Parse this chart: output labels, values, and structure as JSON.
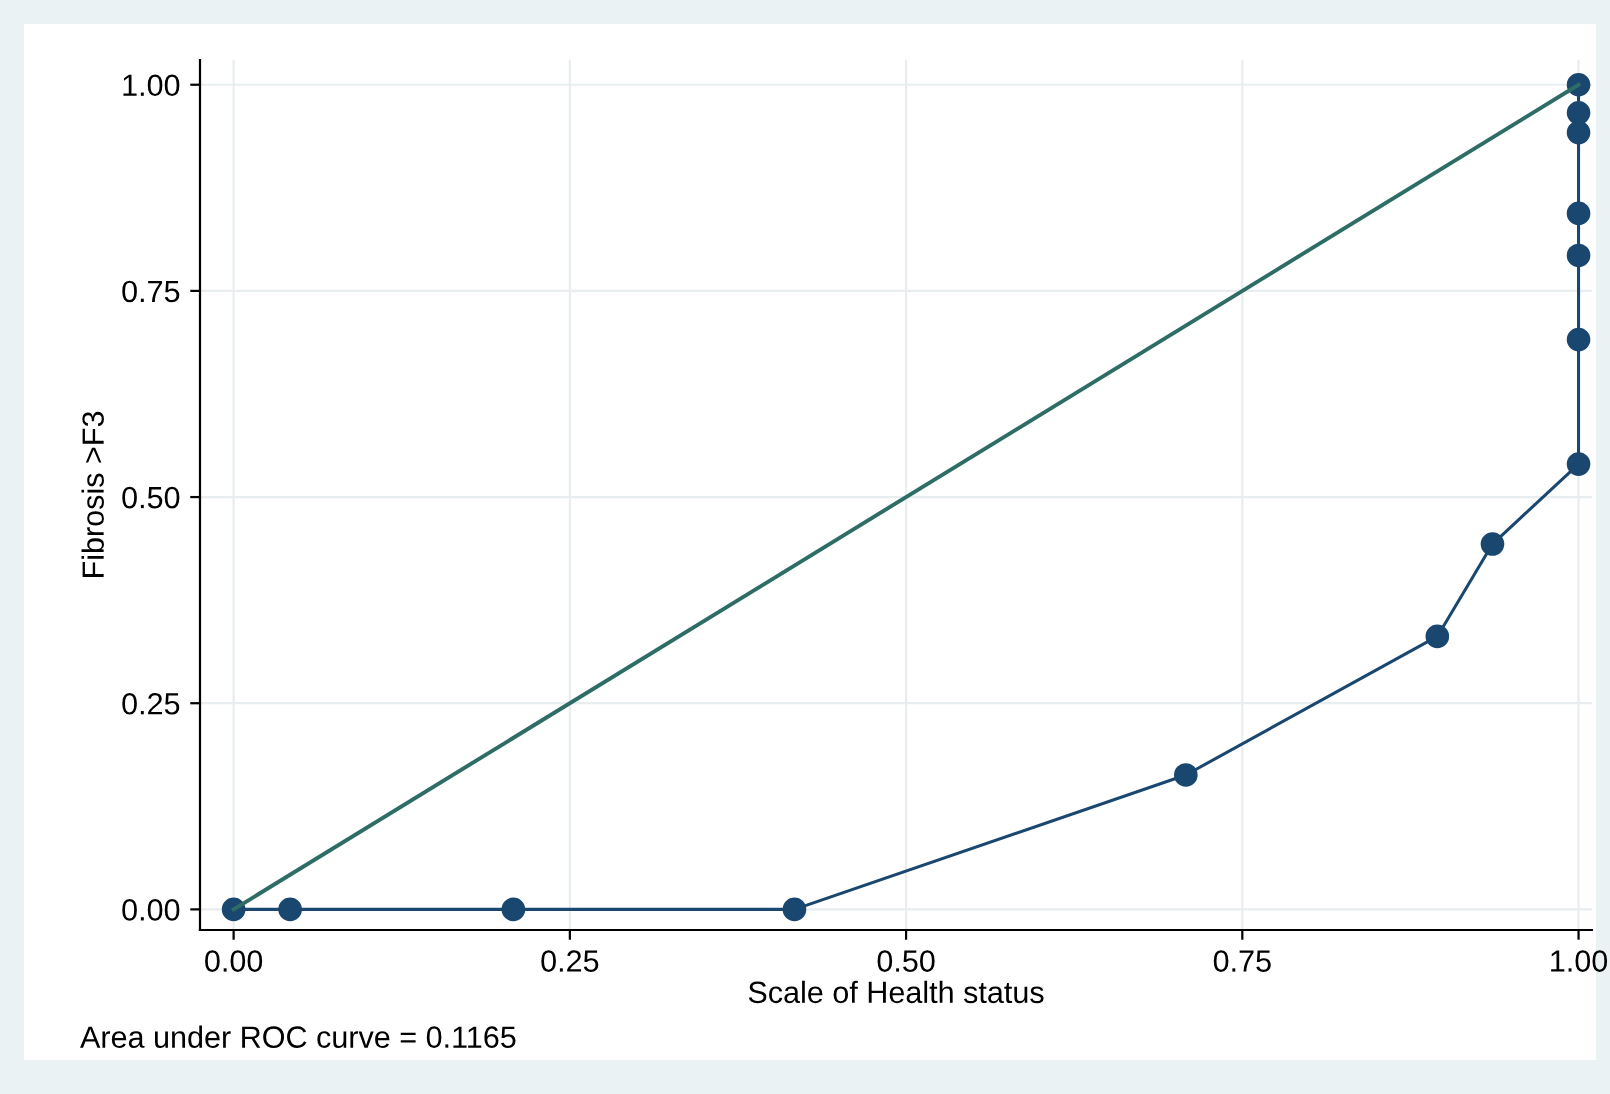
{
  "chart_data": {
    "type": "line",
    "xlabel": "Scale of Health status",
    "ylabel": "Fibrosis >F3",
    "annotations": [
      "Area under ROC curve = 0.1165"
    ],
    "series": [
      {
        "color": "#1a476f",
        "marker": "circle",
        "x": [
          0,
          0.042,
          0.208,
          0.417,
          0.708,
          0.895,
          0.936,
          1,
          1,
          1,
          1,
          1,
          1,
          1
        ],
        "values": [
          0,
          0,
          0,
          0,
          0.163,
          0.331,
          0.443,
          0.54,
          0.691,
          0.793,
          0.844,
          0.942,
          0.966,
          1
        ]
      },
      {
        "color": "#2d6d66",
        "marker": "none",
        "x": [
          0,
          1
        ],
        "values": [
          0,
          1
        ]
      }
    ],
    "xlim": [
      -0.025,
      1.01
    ],
    "ylim": [
      -0.025,
      1.03
    ],
    "xticks": [
      {
        "value": 0,
        "label": "0.00"
      },
      {
        "value": 0.25,
        "label": "0.25"
      },
      {
        "value": 0.5,
        "label": "0.50"
      },
      {
        "value": 0.75,
        "label": "0.75"
      },
      {
        "value": 1,
        "label": "1.00"
      }
    ],
    "yticks": [
      {
        "value": 0,
        "label": "0.00"
      },
      {
        "value": 0.25,
        "label": "0.25"
      },
      {
        "value": 0.5,
        "label": "0.50"
      },
      {
        "value": 0.75,
        "label": "0.75"
      },
      {
        "value": 1,
        "label": "1.00"
      }
    ],
    "grid": true
  }
}
